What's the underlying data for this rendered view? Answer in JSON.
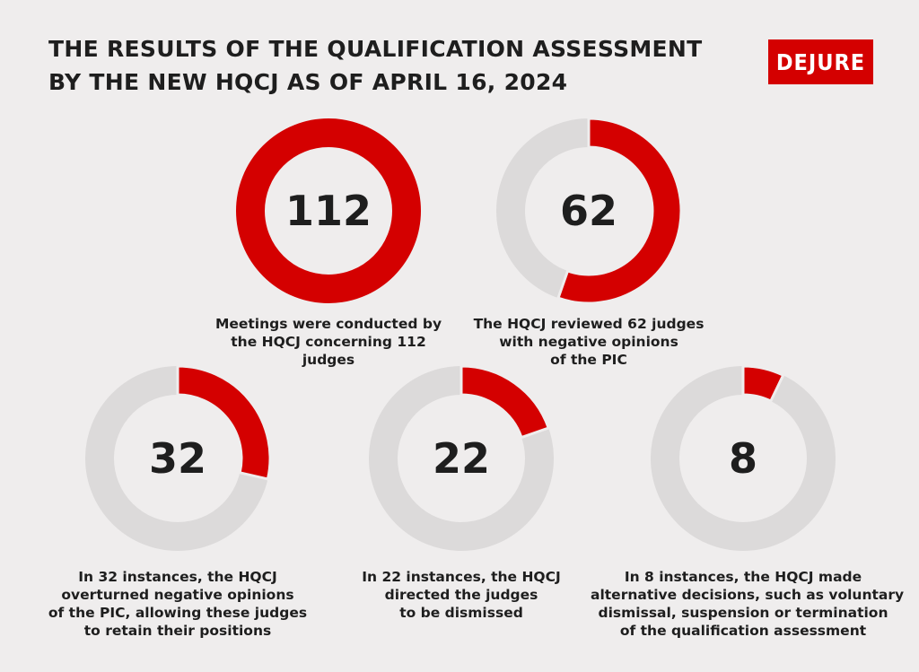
{
  "title": {
    "line1": "THE RESULTS OF THE QUALIFICATION ASSESSMENT",
    "line2": "BY THE NEW HQCJ AS OF APRIL 16, 2024"
  },
  "logo": {
    "text": "DEJURE"
  },
  "colors": {
    "accent": "#d40000",
    "track": "#dcdada",
    "background": "#efeded",
    "text": "#1e1e1e"
  },
  "chart_data": {
    "type": "donut",
    "total": 112,
    "items": [
      {
        "value": 112,
        "caption": [
          "Meetings were conducted by",
          "the HQCJ concerning 112",
          "judges"
        ]
      },
      {
        "value": 62,
        "caption": [
          "The HQCJ reviewed 62 judges",
          "with negative opinions",
          "of the PIC"
        ]
      },
      {
        "value": 32,
        "caption": [
          "In 32 instances, the HQCJ",
          "overturned negative opinions",
          "of the PIC, allowing these judges",
          "to retain their positions"
        ]
      },
      {
        "value": 22,
        "caption": [
          "In 22 instances, the HQCJ",
          "directed the judges",
          "to be dismissed"
        ]
      },
      {
        "value": 8,
        "caption": [
          "In 8 instances, the HQCJ made",
          "alternative decisions, such as voluntary",
          "dismissal, suspension or termination",
          "of the qualification assessment"
        ]
      }
    ]
  }
}
